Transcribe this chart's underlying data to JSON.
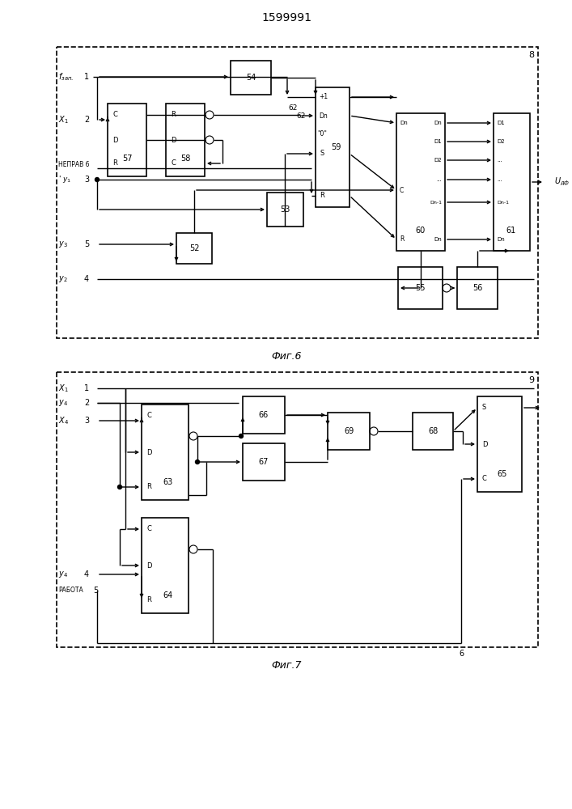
{
  "title": "1599991",
  "fig6_label": "Фиг.6",
  "fig7_label": "Фиг.7",
  "bg_color": "#ffffff",
  "line_color": "#000000"
}
